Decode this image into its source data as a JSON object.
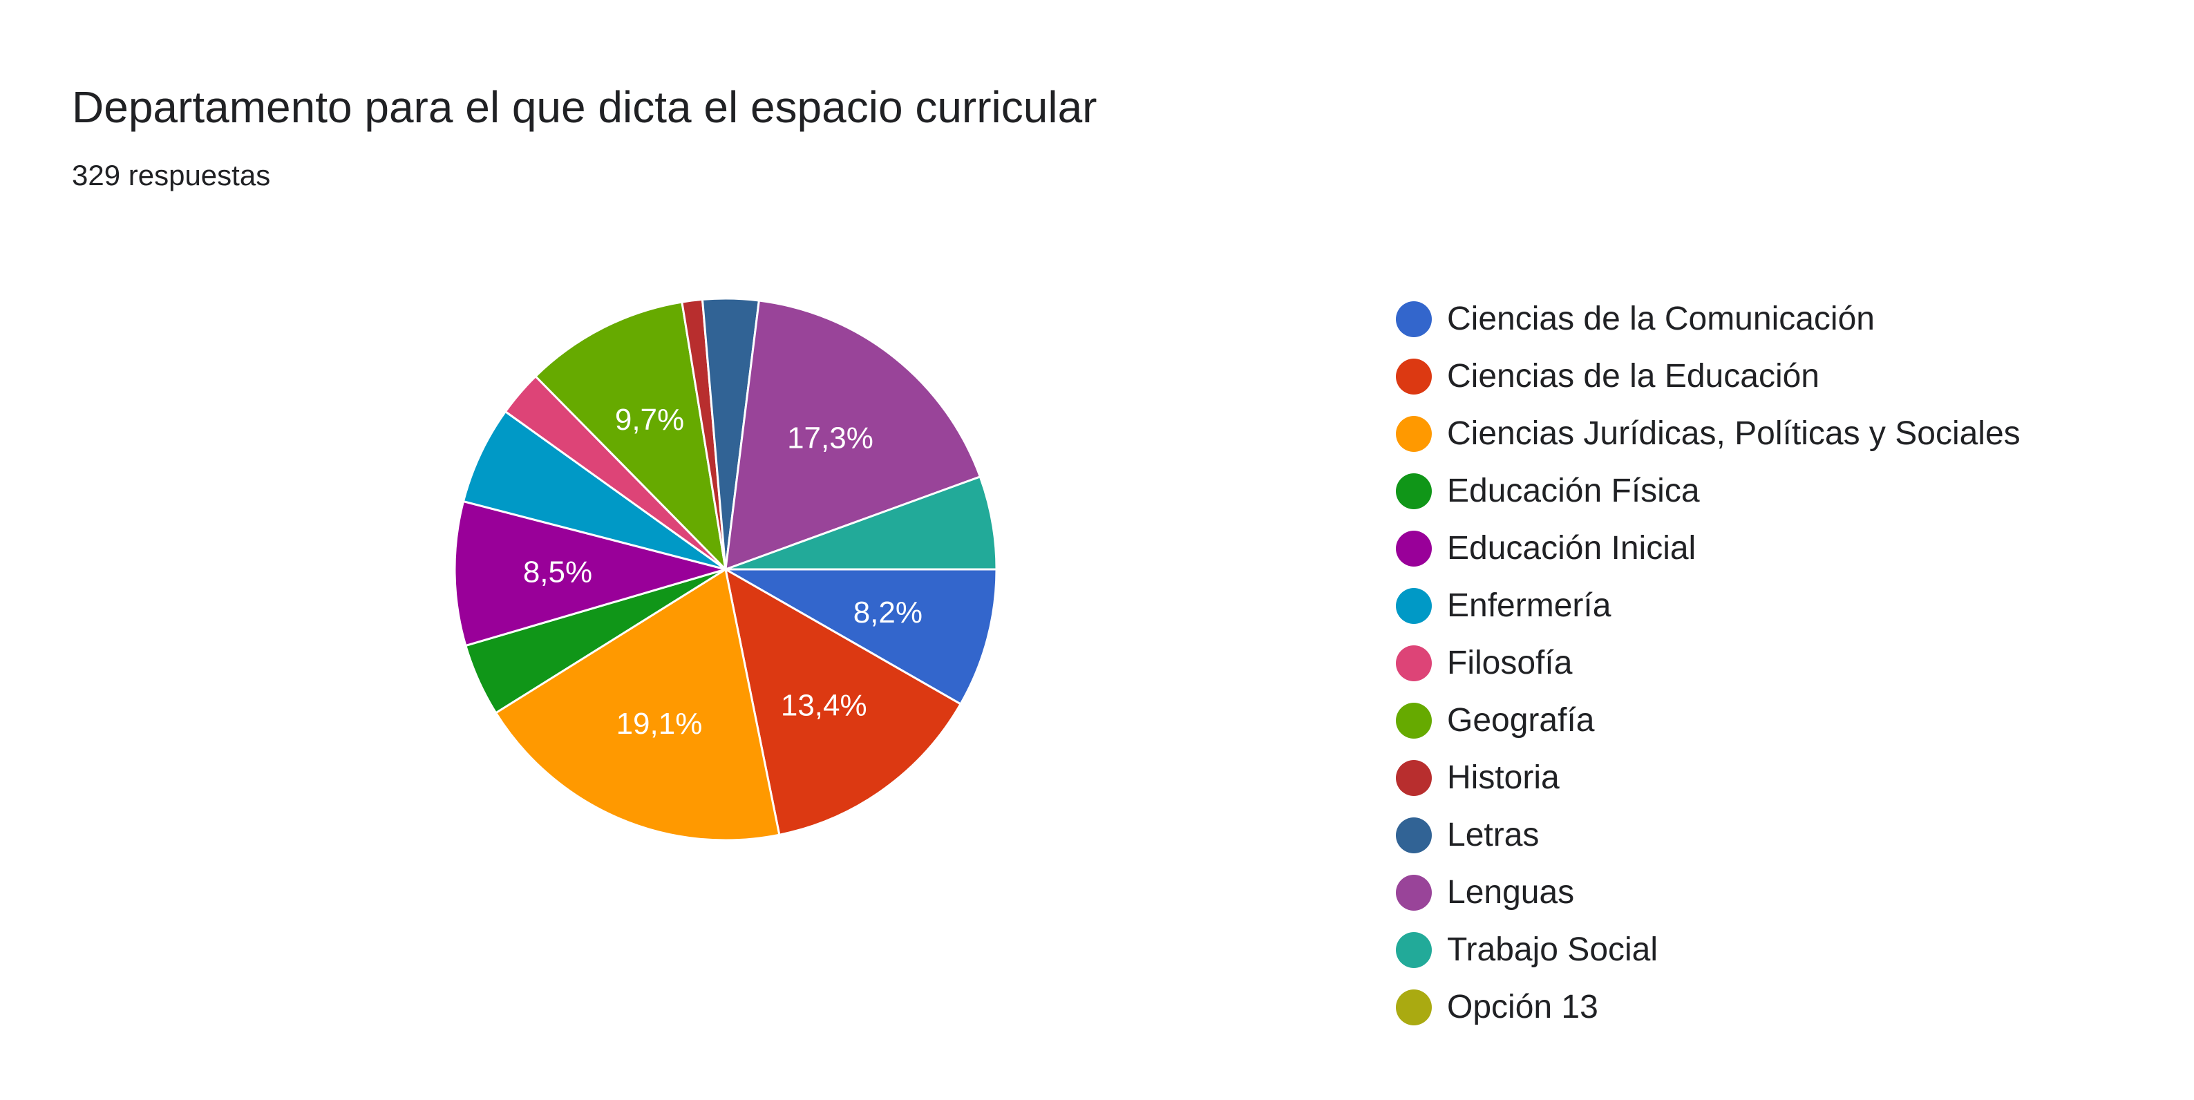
{
  "header": {
    "title": "Departamento para el que dicta el espacio curricular",
    "subtitle": "329 respuestas"
  },
  "chart_data": {
    "type": "pie",
    "legend_position": "right",
    "labels": [
      "Ciencias de la Comunicación",
      "Ciencias de la Educación",
      "Ciencias Jurídicas, Políticas y Sociales",
      "Educación Física",
      "Educación Inicial",
      "Enfermería",
      "Filosofía",
      "Geografía",
      "Historia",
      "Letras",
      "Lenguas",
      "Trabajo Social",
      "Opción 13"
    ],
    "values": [
      8.2,
      13.4,
      19.1,
      4.3,
      8.5,
      5.8,
      2.7,
      9.7,
      1.2,
      3.3,
      17.3,
      5.5,
      0
    ],
    "data_labels": [
      "8,2%",
      "13,4%",
      "19,1%",
      "",
      "8,5%",
      "",
      "",
      "9,7%",
      "",
      "",
      "17,3%",
      "",
      ""
    ],
    "colors": [
      "#3366cc",
      "#dc3912",
      "#ff9900",
      "#109618",
      "#990099",
      "#0099c6",
      "#dd4477",
      "#66aa00",
      "#b82e2e",
      "#316395",
      "#994499",
      "#22aa99",
      "#aaaa11"
    ]
  }
}
